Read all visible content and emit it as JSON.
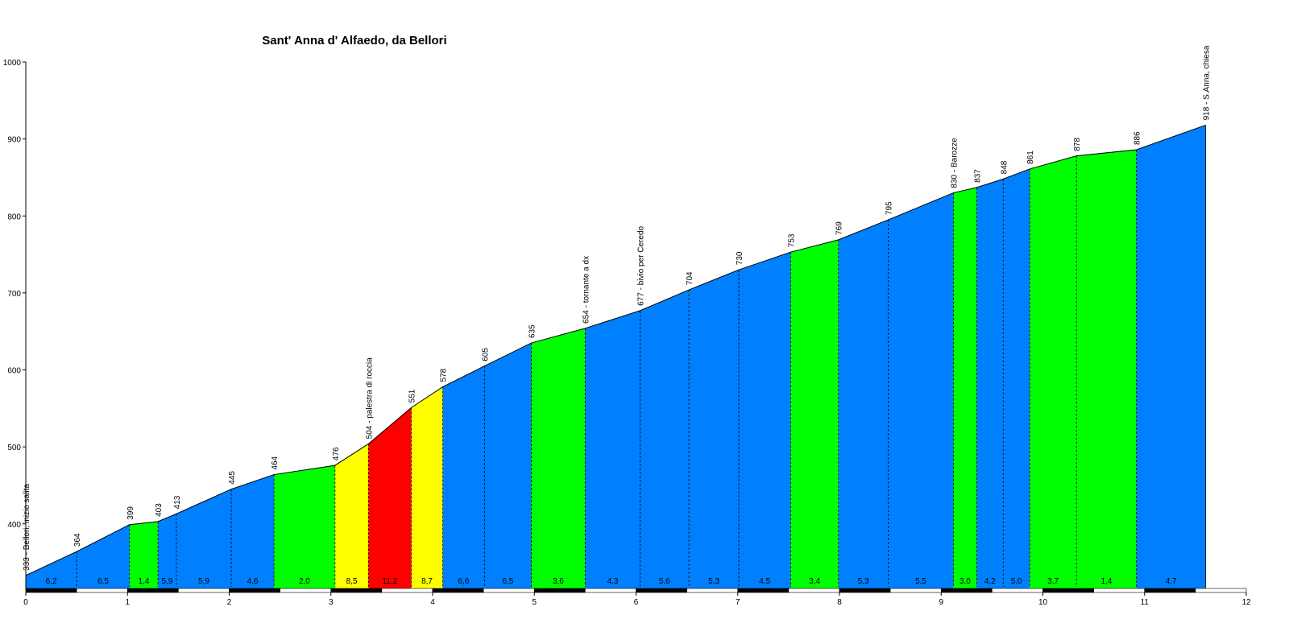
{
  "chart_data": {
    "type": "area",
    "title": "Sant' Anna d' Alfaedo, da Bellori",
    "xlabel": "",
    "ylabel": "",
    "xlim": [
      0,
      12
    ],
    "ylim": [
      314,
      1000
    ],
    "x_ticks": [
      0,
      1,
      2,
      3,
      4,
      5,
      6,
      7,
      8,
      9,
      10,
      11,
      12
    ],
    "y_ticks": [
      400,
      500,
      600,
      700,
      800,
      900,
      1000
    ],
    "colors": {
      "blue": "#0080ff",
      "green": "#00ff00",
      "yellow": "#ffff00",
      "red": "#ff0000"
    },
    "points": [
      {
        "x": 0,
        "y": 333,
        "label": "333 - Bellori, inizio salita"
      },
      {
        "x": 0.5,
        "y": 364,
        "label": "364"
      },
      {
        "x": 1.02,
        "y": 399,
        "label": "399"
      },
      {
        "x": 1.3,
        "y": 403,
        "label": "403"
      },
      {
        "x": 1.48,
        "y": 413,
        "label": "413"
      },
      {
        "x": 2.02,
        "y": 445,
        "label": "445"
      },
      {
        "x": 2.44,
        "y": 464,
        "label": "464"
      },
      {
        "x": 3.04,
        "y": 476,
        "label": "476"
      },
      {
        "x": 3.37,
        "y": 504,
        "label": "504 - palestra di roccia"
      },
      {
        "x": 3.79,
        "y": 551,
        "label": "551"
      },
      {
        "x": 4.1,
        "y": 578,
        "label": "578"
      },
      {
        "x": 4.51,
        "y": 605,
        "label": "605"
      },
      {
        "x": 4.97,
        "y": 635,
        "label": "635"
      },
      {
        "x": 5.5,
        "y": 654,
        "label": "654 - tornante a dx"
      },
      {
        "x": 6.04,
        "y": 677,
        "label": "677 - bivio per Ceredo"
      },
      {
        "x": 6.52,
        "y": 704,
        "label": "704"
      },
      {
        "x": 7.01,
        "y": 730,
        "label": "730"
      },
      {
        "x": 7.52,
        "y": 753,
        "label": "753"
      },
      {
        "x": 7.99,
        "y": 769,
        "label": "769"
      },
      {
        "x": 8.48,
        "y": 795,
        "label": "795"
      },
      {
        "x": 9.12,
        "y": 830,
        "label": "830 - Barozze"
      },
      {
        "x": 9.35,
        "y": 837,
        "label": "837"
      },
      {
        "x": 9.61,
        "y": 848,
        "label": "848"
      },
      {
        "x": 9.87,
        "y": 861,
        "label": "861"
      },
      {
        "x": 10.33,
        "y": 878,
        "label": "878"
      },
      {
        "x": 10.92,
        "y": 886,
        "label": "886"
      },
      {
        "x": 11.6,
        "y": 918,
        "label": "918 - S.Anna, chiesa"
      }
    ],
    "segments": [
      {
        "grade": "6,2",
        "color": "blue"
      },
      {
        "grade": "6,5",
        "color": "blue"
      },
      {
        "grade": "1,4",
        "color": "green"
      },
      {
        "grade": "5,9",
        "color": "blue"
      },
      {
        "grade": "5,9",
        "color": "blue"
      },
      {
        "grade": "4,6",
        "color": "blue"
      },
      {
        "grade": "2,0",
        "color": "green"
      },
      {
        "grade": "8,5",
        "color": "yellow"
      },
      {
        "grade": "11,2",
        "color": "red"
      },
      {
        "grade": "8,7",
        "color": "yellow"
      },
      {
        "grade": "6,6",
        "color": "blue"
      },
      {
        "grade": "6,5",
        "color": "blue"
      },
      {
        "grade": "3,6",
        "color": "green"
      },
      {
        "grade": "4,3",
        "color": "blue"
      },
      {
        "grade": "5,6",
        "color": "blue"
      },
      {
        "grade": "5,3",
        "color": "blue"
      },
      {
        "grade": "4,5",
        "color": "blue"
      },
      {
        "grade": "3,4",
        "color": "green"
      },
      {
        "grade": "5,3",
        "color": "blue"
      },
      {
        "grade": "5,5",
        "color": "blue"
      },
      {
        "grade": "3,0",
        "color": "green"
      },
      {
        "grade": "4,2",
        "color": "blue"
      },
      {
        "grade": "5,0",
        "color": "blue"
      },
      {
        "grade": "3,7",
        "color": "green"
      },
      {
        "grade": "1,4",
        "color": "green"
      },
      {
        "grade": "4,7",
        "color": "blue"
      }
    ]
  }
}
